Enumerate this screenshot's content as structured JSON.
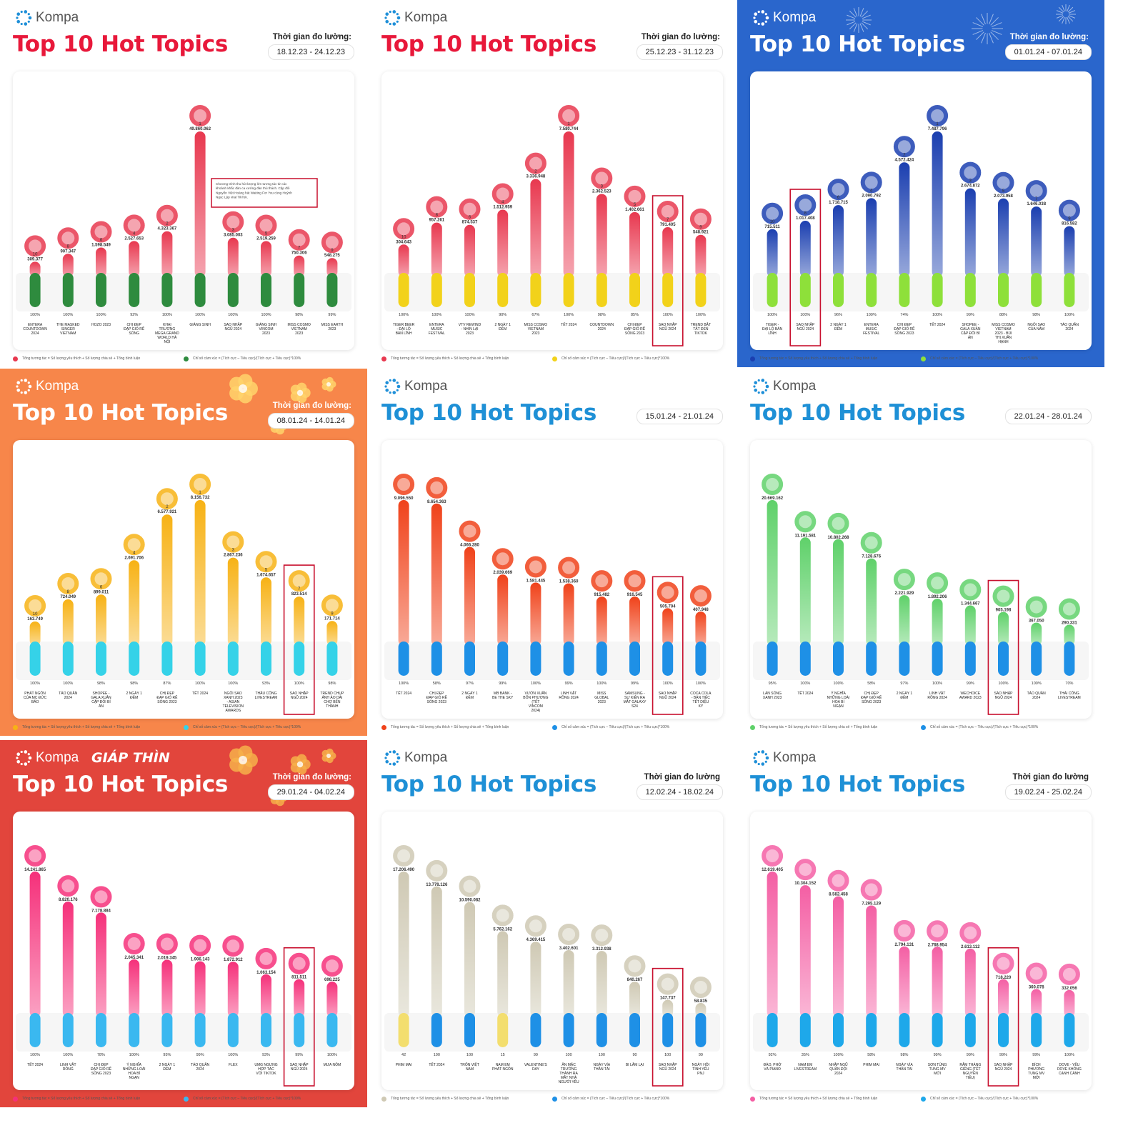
{
  "brand": "Kompa",
  "title": "Top 10 Hot Topics",
  "legend": {
    "left": "Tổng tương tác = Số lượng yêu thích + Số lượng chia sẻ + Tổng bình luận",
    "right": "Chỉ số cảm xúc = (Tích cực – Tiêu cực)/(Tích cực + Tiêu cực)*100%"
  },
  "panels": [
    {
      "period_label": "Thời gian đo lường:",
      "period": "18.12.23 - 24.12.23",
      "theme": {
        "bg": "#ffffff",
        "title": "#e8183a",
        "brand": "#555555",
        "top": "#e8384f",
        "bottom": "#2e8b3e",
        "legend_left": "#e8384f",
        "legend_right": "#2e8b3e"
      },
      "chart_data": {
        "type": "bar",
        "categories": [
          "ENTERA COUNTDOWN 2024",
          "THE MASKED SINGER VIETNAM",
          "HOZO 2023",
          "CHỊ ĐẸP ĐẠP GIÓ RẼ SÓNG",
          "KHAI TRƯƠNG MEGA GRAND WORLD HÀ NỘI",
          "GIÁNG SINH",
          "SAO NHẬP NGŨ 2024",
          "GIÁNG SINH VINCOM 2023",
          "MISS COSMO VIETNAM 2023",
          "MISS EARTH 2023"
        ],
        "ranks": [
          "10",
          "8",
          "6",
          "4",
          "2",
          "1",
          "3",
          "5",
          "7",
          "9"
        ],
        "value_labels": [
          "309.377",
          "907.347",
          "1.598.549",
          "2.527.653",
          "4.323.367",
          "49.860.062",
          "3.085.003",
          "2.519.259",
          "750.306",
          "548.275"
        ],
        "values": [
          309377,
          907347,
          1598549,
          2527653,
          4323367,
          49860062,
          3085003,
          2519259,
          750306,
          548275
        ],
        "sentiment": [
          "100%",
          "100%",
          "100%",
          "92%",
          "100%",
          "100%",
          "100%",
          "100%",
          "98%",
          "99%"
        ],
        "highlight": [],
        "annotation": "Chương trình thu hút lượng lớn tương tác từ các khoảnh khắc đàn ca xướng đàn thú thách. Cặp đôi Nguyễn Việt Hoàng hát Waiting For You cùng Huỳnh Ngọc Lập viral TikTok."
      }
    },
    {
      "period_label": "Thời gian đo lường:",
      "period": "25.12.23 - 31.12.23",
      "theme": {
        "bg": "#ffffff",
        "title": "#e8183a",
        "brand": "#555555",
        "top": "#e8384f",
        "bottom": "#f2d21a",
        "legend_left": "#e8384f",
        "legend_right": "#f2d21a"
      },
      "chart_data": {
        "type": "bar",
        "categories": [
          "TIGER BEER - ĐẠI LỘ BẢN LĨNH",
          "ENTERA MUSIC FESTIVAL",
          "VTV REWIND - NHÌN LẠI 2023",
          "2 NGÀY 1 ĐÊM",
          "MISS COSMO VIETNAM 2023",
          "TẾT 2024",
          "COUNTDOWN 2024",
          "CHỊ ĐẸP ĐẠP GIÓ RẼ SÓNG 2023",
          "SAO NHẬP NGŨ 2024",
          "TREND BẬT TẮT ĐÈN TIKTOK"
        ],
        "ranks": [
          "10",
          "8",
          "6",
          "4",
          "2",
          "1",
          "3",
          "5",
          "7",
          "9"
        ],
        "value_labels": [
          "304.643",
          "957.261",
          "874.537",
          "1.512.959",
          "3.336.948",
          "7.580.744",
          "2.362.523",
          "1.402.661",
          "791.405",
          "548.921"
        ],
        "values": [
          304643,
          957261,
          874537,
          1512959,
          3336948,
          7580744,
          2362523,
          1402661,
          791405,
          548921
        ],
        "sentiment": [
          "100%",
          "100%",
          "100%",
          "90%",
          "67%",
          "100%",
          "98%",
          "85%",
          "100%",
          "100%"
        ],
        "highlight": [
          8
        ]
      }
    },
    {
      "period_label": "Thời gian đo lường:",
      "period": "01.01.24 - 07.01.24",
      "theme": {
        "bg": "#2a66cc",
        "title": "#ffffff",
        "brand": "#ffffff",
        "top": "#1b3fb0",
        "bottom": "#8ee03a",
        "legend_left": "#1b3fb0",
        "legend_right": "#8ee03a"
      },
      "chart_data": {
        "type": "bar",
        "categories": [
          "TIGER - ĐẠI LỘ BẢN LĨNH",
          "SAO NHẬP NGŨ 2024",
          "2 NGÀY 1 ĐÊM",
          "ENTERA MUSIC FESTIVAL",
          "CHỊ ĐẸP ĐẠP GIÓ RẼ SÓNG 2023",
          "TẾT 2024",
          "SHOPEE - GALA XUÂN CẶP ĐÔI BÍ ẨN",
          "MISS COSMO VIETNAM 2023 - BÙI THỊ XUÂN HẠNH",
          "NGÔI SAO CỦA NĂM",
          "TÁO QUÂN 2024"
        ],
        "ranks": [
          "10",
          "8",
          "6",
          "4",
          "2",
          "1",
          "3",
          "5",
          "7",
          "9"
        ],
        "value_labels": [
          "715.511",
          "1.017.408",
          "1.718.715",
          "2.090.792",
          "4.572.424",
          "7.487.796",
          "2.674.872",
          "2.073.958",
          "1.646.038",
          "816.582"
        ],
        "values": [
          715511,
          1017408,
          1718715,
          2090792,
          4572424,
          7487796,
          2674872,
          2073958,
          1646038,
          816582
        ],
        "sentiment": [
          "100%",
          "100%",
          "96%",
          "100%",
          "74%",
          "100%",
          "99%",
          "88%",
          "98%",
          "100%"
        ],
        "highlight": [
          1
        ]
      }
    },
    {
      "period_label": "Thời gian đo lường:",
      "period": "08.01.24 - 14.01.24",
      "theme": {
        "bg": "#f7864a",
        "title": "#ffffff",
        "brand": "#ffffff",
        "top": "#f7b215",
        "bottom": "#35d2e8",
        "legend_left": "#f7b215",
        "legend_right": "#35d2e8"
      },
      "chart_data": {
        "type": "bar",
        "categories": [
          "PHÁT NGÔN CỦA MC ĐỨC BẢO",
          "TÁO QUÂN 2024",
          "SHOPEE - GALA XUÂN CẶP ĐÔI BÍ ẨN",
          "2 NGÀY 1 ĐÊM",
          "CHỊ ĐẸP ĐẠP GIÓ RẼ SÓNG 2023",
          "TẾT 2024",
          "NGÔI SAO XANH 2023 - ASIAN TELEVISION AWARDS",
          "THẦU CÔNG LIVESTREAM",
          "SAO NHẬP NGŨ 2024",
          "TREND CHỤP ẢNH ÁO DÀI CHỢ BẾN THÀNH"
        ],
        "ranks": [
          "10",
          "8",
          "6",
          "4",
          "2",
          "1",
          "3",
          "5",
          "7",
          "9"
        ],
        "value_labels": [
          "163.749",
          "724.049",
          "899.011",
          "2.691.706",
          "6.577.921",
          "8.156.732",
          "2.867.236",
          "1.674.657",
          "823.514",
          "171.714"
        ],
        "values": [
          163749,
          724049,
          899011,
          2691706,
          6577921,
          8156732,
          2867236,
          1674657,
          823514,
          171714
        ],
        "sentiment": [
          "100%",
          "100%",
          "98%",
          "98%",
          "87%",
          "100%",
          "100%",
          "93%",
          "100%",
          "98%"
        ],
        "highlight": [
          8
        ]
      }
    },
    {
      "period_label": "",
      "period": "15.01.24 - 21.01.24",
      "theme": {
        "bg": "#ffffff",
        "title": "#1e90d6",
        "brand": "#555555",
        "top": "#f0421a",
        "bottom": "#1e90e6",
        "legend_left": "#f0421a",
        "legend_right": "#1e90e6"
      },
      "chart_data": {
        "type": "bar",
        "categories": [
          "TẾT 2024",
          "CHỊ ĐẸP ĐẠP GIÓ RẼ SÓNG 2023",
          "2 NGÀY 1 ĐÊM",
          "MB BANK - BE THE SKY",
          "VƯỜN XUÂN BỐN PHƯƠNG (TẾT VINCOM 2024)",
          "LINH VẬT RỒNG 2024",
          "MISS GLOBAL 2023",
          "SAMSUNG - SỰ KIỆN RA MẮT GALAXY S24",
          "SAO NHẬP NGŨ 2024",
          "COCA COLA - BÀN TIỆC TẾT DIỆU KỲ"
        ],
        "ranks": [
          "",
          "",
          "",
          "",
          "",
          "",
          "",
          "",
          "",
          ""
        ],
        "value_labels": [
          "9.096.550",
          "8.654.363",
          "4.066.280",
          "2.039.669",
          "1.581.445",
          "1.538.360",
          "915.482",
          "916.545",
          "505.704",
          "407.948"
        ],
        "values": [
          9096550,
          8654363,
          4066280,
          2039669,
          1581445,
          1538360,
          915482,
          916545,
          505704,
          407948
        ],
        "sentiment": [
          "100%",
          "58%",
          "97%",
          "99%",
          "100%",
          "99%",
          "100%",
          "99%",
          "100%",
          "100%"
        ],
        "highlight": [
          8
        ]
      }
    },
    {
      "period_label": "",
      "period": "22.01.24 - 28.01.24",
      "theme": {
        "bg": "#ffffff",
        "title": "#1e90d6",
        "brand": "#555555",
        "top": "#5fd16a",
        "bottom": "#1e90e6",
        "legend_left": "#5fd16a",
        "legend_right": "#1e90e6"
      },
      "chart_data": {
        "type": "bar",
        "categories": [
          "LÀN SÓNG XANH 2023",
          "TẾT 2024",
          "Ý NGHĨA NHỮNG LOÀI HOA BÍ NGẠN",
          "CHỊ ĐẸP ĐẠP GIÓ RẼ SÓNG 2023",
          "2 NGÀY 1 ĐÊM",
          "LINH VẬT RỒNG 2024",
          "WECHOICE AWARD 2023",
          "SAO NHẬP NGŨ 2024",
          "TÁO QUÂN 2024",
          "THÁI CÔNG LIVESTREAM"
        ],
        "ranks": [
          "",
          "",
          "",
          "",
          "",
          "",
          "",
          "",
          "",
          ""
        ],
        "value_labels": [
          "20.669.162",
          "11.191.581",
          "10.802.268",
          "7.128.676",
          "2.221.929",
          "1.892.206",
          "1.344.667",
          "905.198",
          "367.050",
          "290.331"
        ],
        "values": [
          20669162,
          11191581,
          10802268,
          7128676,
          2221929,
          1892206,
          1344667,
          905198,
          367050,
          290331
        ],
        "sentiment": [
          "95%",
          "100%",
          "100%",
          "58%",
          "97%",
          "100%",
          "99%",
          "100%",
          "100%",
          "70%"
        ],
        "highlight": [
          7
        ]
      }
    },
    {
      "period_label": "Thời gian đo lường:",
      "period": "29.01.24 - 04.02.24",
      "extra_logo": "GIÁP THÌN",
      "theme": {
        "bg": "#e2453c",
        "title": "#ffffff",
        "brand": "#ffffff",
        "top": "#f5307a",
        "bottom": "#3ab8f0",
        "legend_left": "#f5307a",
        "legend_right": "#3ab8f0"
      },
      "chart_data": {
        "type": "bar",
        "categories": [
          "TẾT 2024",
          "LINH VẬT RỒNG",
          "CHỊ ĐẸP ĐẠP GIÓ RẼ SÓNG 2023",
          "Ý NGHĨA NHỮNG LOÀI HOA BÍ NGẠN",
          "2 NGÀY 1 ĐÊM",
          "TÁO QUÂN 2024",
          "FLEX",
          "UMG NGƯNG HỢP TÁC VỚI TIKTOK",
          "SAO NHẬP NGŨ 2024",
          "MƯA NÔM"
        ],
        "ranks": [
          "",
          "",
          "",
          "",
          "",
          "",
          "",
          "",
          "",
          ""
        ],
        "value_labels": [
          "14.241.865",
          "8.820.176",
          "7.178.884",
          "2.045.341",
          "2.019.345",
          "1.906.143",
          "1.872.912",
          "1.063.154",
          "811.511",
          "698.225"
        ],
        "values": [
          14241865,
          8820176,
          7178884,
          2045341,
          2019345,
          1906143,
          1872912,
          1063154,
          811511,
          698225
        ],
        "sentiment": [
          "100%",
          "100%",
          "78%",
          "100%",
          "95%",
          "99%",
          "100%",
          "93%",
          "99%",
          "100%"
        ],
        "highlight": [
          8
        ]
      }
    },
    {
      "period_label": "Thời gian đo lường",
      "period": "12.02.24 - 18.02.24",
      "theme": {
        "bg": "#ffffff",
        "title": "#1e90d6",
        "brand": "#555555",
        "top": "#cfc9b4",
        "bottom": "#f3de6e",
        "legend_left": "#cfc9b4",
        "legend_right": "#1e90e6",
        "bottom_alt": "#1e90e6"
      },
      "chart_data": {
        "type": "bar",
        "categories": [
          "PHIM MAI",
          "TẾT 2024",
          "TRỐN VIỆT NAM",
          "NAM EM PHÁT NGÔN",
          "VALENTINE'S DAY",
          "ĂN MẶC TRƯỜNG THÀNH RA MẮT NHÀ NGƯỜI YÊU",
          "NGÀY VÍA THẦN TÀI",
          "BI LÂM LẠI",
          "SAO NHẬP NGŨ 2024",
          "NGÀY HỘI TÌNH YÊU PNJ"
        ],
        "ranks": [
          "",
          "",
          "",
          "",
          "",
          "",
          "",
          "",
          "",
          ""
        ],
        "value_labels": [
          "17.206.490",
          "13.778.126",
          "10.590.082",
          "5.762.162",
          "4.369.415",
          "3.402.601",
          "3.312.938",
          "840.267",
          "147.737",
          "58.835"
        ],
        "values": [
          17206490,
          13778126,
          10590082,
          5762162,
          4369415,
          3402601,
          3312938,
          840267,
          147737,
          58835
        ],
        "sentiment": [
          "42",
          "100",
          "100",
          "15",
          "99",
          "100",
          "100",
          "90",
          "100",
          "99"
        ],
        "highlight": [
          8
        ]
      }
    },
    {
      "period_label": "Thời gian đo lường",
      "period": "19.02.24 - 25.02.24",
      "theme": {
        "bg": "#ffffff",
        "title": "#1e90d6",
        "brand": "#555555",
        "top": "#f45fa4",
        "bottom": "#1ea8ea",
        "legend_left": "#f45fa4",
        "legend_right": "#1ea8ea"
      },
      "chart_data": {
        "type": "bar",
        "categories": [
          "ĐÀO, PHỞ VÀ PIANO",
          "NAM EM LIVESTREAM",
          "NHẬP NGŨ QUÂN ĐỘI 2024",
          "PHIM MAI",
          "NGÀY VÍA THẦN TÀI",
          "SƠN TÙNG TUNG MV MỚI",
          "RẰM THÁNG GIÊNG (TẾT NGUYÊN TIÊU)",
          "SAO NHẬP NGŨ 2024",
          "BÍCH PHƯƠNG TUNG MV MỚI",
          "DOVE - YÊU DOVE KHÔNG CẠNH CÀNH"
        ],
        "ranks": [
          "",
          "",
          "",
          "",
          "",
          "",
          "",
          "",
          "",
          ""
        ],
        "value_labels": [
          "12.619.405",
          "10.304.152",
          "8.582.458",
          "7.295.129",
          "2.794.131",
          "2.768.954",
          "2.613.112",
          "718.220",
          "360.078",
          "332.056"
        ],
        "values": [
          12619405,
          10304152,
          8582458,
          7295129,
          2794131,
          2768954,
          2613112,
          718220,
          360078,
          332056
        ],
        "sentiment": [
          "92%",
          "35%",
          "100%",
          "58%",
          "98%",
          "99%",
          "99%",
          "99%",
          "99%",
          "100%"
        ],
        "highlight": [
          7
        ]
      }
    }
  ]
}
